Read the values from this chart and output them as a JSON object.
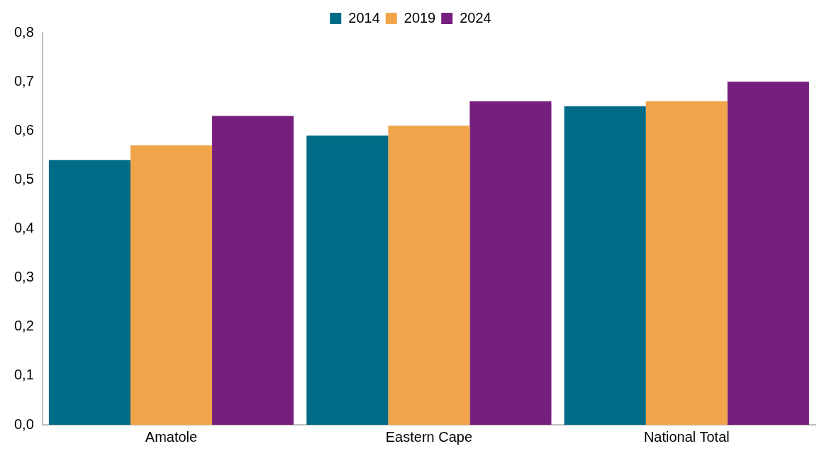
{
  "chart_data": {
    "type": "bar",
    "categories": [
      "Amatole",
      "Eastern Cape",
      "National Total"
    ],
    "series": [
      {
        "name": "2014",
        "color": "#006b86",
        "values": [
          0.54,
          0.59,
          0.65
        ]
      },
      {
        "name": "2019",
        "color": "#f0a54a",
        "values": [
          0.57,
          0.61,
          0.66
        ]
      },
      {
        "name": "2024",
        "color": "#771f7d",
        "values": [
          0.63,
          0.66,
          0.7
        ]
      }
    ],
    "ylim": [
      0,
      0.8
    ],
    "yticks": [
      {
        "value": 0,
        "label": "0,0"
      },
      {
        "value": 0.1,
        "label": "0,1"
      },
      {
        "value": 0.2,
        "label": "0,2"
      },
      {
        "value": 0.3,
        "label": "0,3"
      },
      {
        "value": 0.4,
        "label": "0,4"
      },
      {
        "value": 0.5,
        "label": "0,5"
      },
      {
        "value": 0.6,
        "label": "0,6"
      },
      {
        "value": 0.7,
        "label": "0,7"
      },
      {
        "value": 0.8,
        "label": "0,8"
      }
    ],
    "grid": false,
    "legend": "top"
  }
}
